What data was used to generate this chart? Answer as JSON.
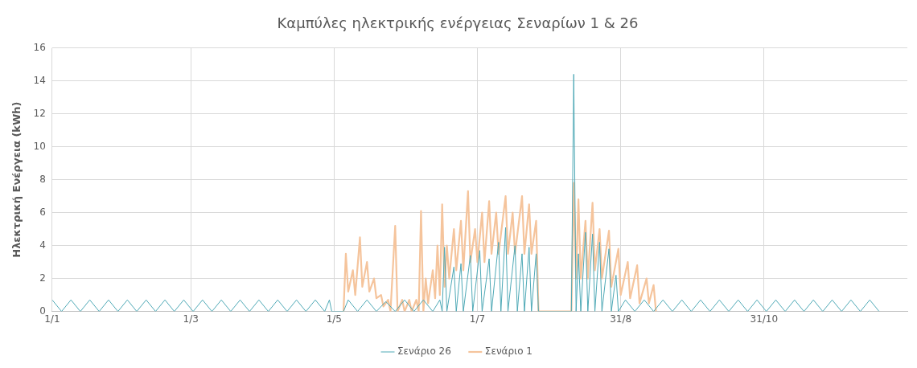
{
  "chart_data": {
    "type": "line",
    "title": "Καμπύλες ηλεκτρικής ενέργειας Σεναρίων 1 & 26",
    "ylabel": "Ηλεκτρική Ενέργεια (kWh)",
    "xlim": [
      "--01-01",
      "--12-31"
    ],
    "xticks": [
      {
        "value": "--01-01",
        "label": "1/1"
      },
      {
        "value": "--03-01",
        "label": "1/3"
      },
      {
        "value": "--05-01",
        "label": "1/5"
      },
      {
        "value": "--07-01",
        "label": "1/7"
      },
      {
        "value": "--08-31",
        "label": "31/8"
      },
      {
        "value": "--10-31",
        "label": "31/10"
      }
    ],
    "ylim": [
      0,
      16
    ],
    "yticks": [
      0,
      2,
      4,
      6,
      8,
      10,
      12,
      14,
      16
    ],
    "grid": true,
    "legend": "bottom",
    "marker": "none",
    "series": [
      {
        "name": "Σενάριο 1",
        "color": "#f5c49c",
        "x": [
          "--05-05",
          "--05-06",
          "--05-07",
          "--05-09",
          "--05-10",
          "--05-12",
          "--05-13",
          "--05-15",
          "--05-16",
          "--05-18",
          "--05-19",
          "--05-21",
          "--05-22",
          "--05-24",
          "--05-25",
          "--05-27",
          "--05-28",
          "--05-30",
          "--05-31",
          "--06-02",
          "--06-03",
          "--06-05",
          "--06-06",
          "--06-07",
          "--06-08",
          "--06-09",
          "--06-10",
          "--06-12",
          "--06-13",
          "--06-14",
          "--06-15",
          "--06-16",
          "--06-17",
          "--06-18",
          "--06-19",
          "--06-21",
          "--06-22",
          "--06-24",
          "--06-25",
          "--06-27",
          "--06-28",
          "--06-30",
          "--07-01",
          "--07-03",
          "--07-04",
          "--07-06",
          "--07-07",
          "--07-09",
          "--07-10",
          "--07-13",
          "--07-14",
          "--07-16",
          "--07-17",
          "--07-20",
          "--07-21",
          "--07-23",
          "--07-24",
          "--07-26",
          "--07-27",
          "--08-10",
          "--08-11",
          "--08-12",
          "--08-13",
          "--08-14",
          "--08-16",
          "--08-17",
          "--08-19",
          "--08-20",
          "--08-22",
          "--08-23",
          "--08-26",
          "--08-27",
          "--08-30",
          "--08-31",
          "--09-03",
          "--09-04",
          "--09-07",
          "--09-08",
          "--09-11",
          "--09-12",
          "--09-14",
          "--09-15"
        ],
        "values": [
          0,
          3.5,
          1.2,
          2.5,
          1.0,
          4.5,
          1.5,
          3.0,
          1.2,
          2.0,
          0.8,
          1.0,
          0.3,
          0.7,
          0,
          5.2,
          0,
          0.7,
          0,
          0.7,
          0,
          0.7,
          0,
          6.1,
          0,
          2.0,
          0.5,
          2.5,
          0.8,
          4.0,
          1.0,
          6.5,
          1.5,
          4.0,
          2.0,
          5.0,
          2.5,
          5.5,
          2.5,
          7.3,
          3.0,
          5.0,
          3.0,
          6.0,
          3.0,
          6.7,
          3.5,
          6.0,
          3.5,
          7.0,
          3.5,
          6.0,
          3.5,
          7.0,
          3.5,
          6.5,
          3.5,
          5.5,
          0,
          0,
          7.8,
          2.0,
          6.8,
          2.0,
          5.5,
          2.0,
          6.6,
          2.5,
          5.0,
          2.0,
          4.9,
          1.5,
          3.8,
          1.0,
          3.0,
          0.8,
          2.8,
          0.5,
          2.0,
          0.5,
          1.6,
          0
        ]
      },
      {
        "name": "Σενάριο 26",
        "color": "#4fa9b6",
        "x": [
          "--01-01",
          "--01-05",
          "--01-09",
          "--01-13",
          "--01-17",
          "--01-21",
          "--01-25",
          "--01-29",
          "--02-02",
          "--02-06",
          "--02-10",
          "--02-14",
          "--02-18",
          "--02-22",
          "--02-26",
          "--03-02",
          "--03-06",
          "--03-10",
          "--03-14",
          "--03-18",
          "--03-22",
          "--03-26",
          "--03-30",
          "--04-03",
          "--04-07",
          "--04-11",
          "--04-15",
          "--04-19",
          "--04-23",
          "--04-27",
          "--04-29",
          "--04-30",
          "--05-05",
          "--05-07",
          "--05-11",
          "--05-15",
          "--05-19",
          "--05-23",
          "--05-27",
          "--05-31",
          "--06-04",
          "--06-08",
          "--06-12",
          "--06-15",
          "--06-16",
          "--06-17",
          "--06-18",
          "--06-21",
          "--06-22",
          "--06-24",
          "--06-25",
          "--06-28",
          "--06-29",
          "--07-02",
          "--07-03",
          "--07-06",
          "--07-07",
          "--07-10",
          "--07-11",
          "--07-13",
          "--07-14",
          "--07-17",
          "--07-18",
          "--07-20",
          "--07-21",
          "--07-23",
          "--07-24",
          "--07-26",
          "--07-27",
          "--08-10",
          "--08-11",
          "--08-12",
          "--08-13",
          "--08-14",
          "--08-16",
          "--08-17",
          "--08-19",
          "--08-20",
          "--08-22",
          "--08-23",
          "--08-26",
          "--08-27",
          "--08-29",
          "--08-30",
          "--09-02",
          "--09-06",
          "--09-10",
          "--09-14",
          "--09-18",
          "--09-22",
          "--09-26",
          "--09-30",
          "--10-04",
          "--10-08",
          "--10-12",
          "--10-16",
          "--10-20",
          "--10-24",
          "--10-28",
          "--11-01",
          "--11-05",
          "--11-09",
          "--11-13",
          "--11-17",
          "--11-21",
          "--11-25",
          "--11-29",
          "--12-03",
          "--12-07",
          "--12-11",
          "--12-15",
          "--12-19"
        ],
        "values": [
          0.7,
          0,
          0.7,
          0,
          0.7,
          0,
          0.7,
          0,
          0.7,
          0,
          0.7,
          0,
          0.7,
          0,
          0.7,
          0,
          0.7,
          0,
          0.7,
          0,
          0.7,
          0,
          0.7,
          0,
          0.7,
          0,
          0.7,
          0,
          0.7,
          0,
          0.7,
          0,
          0,
          0.7,
          0,
          0.7,
          0,
          0.6,
          0,
          0.7,
          0,
          0.7,
          0,
          0.7,
          0,
          3.9,
          0,
          2.7,
          0,
          2.9,
          0,
          3.4,
          0,
          3.7,
          0,
          3.2,
          0,
          4.2,
          0,
          5.1,
          0,
          4.0,
          0,
          3.5,
          0,
          3.9,
          0,
          3.5,
          0,
          0,
          14.4,
          0,
          3.5,
          0,
          4.8,
          0,
          4.7,
          0,
          4.2,
          0,
          3.8,
          0,
          2.2,
          0,
          0.7,
          0,
          0.7,
          0,
          0.7,
          0,
          0.7,
          0,
          0.7,
          0,
          0.7,
          0,
          0.7,
          0,
          0.7,
          0,
          0.7,
          0,
          0.7,
          0,
          0.7,
          0,
          0.7,
          0,
          0.7,
          0,
          0.7,
          0
        ]
      }
    ]
  }
}
